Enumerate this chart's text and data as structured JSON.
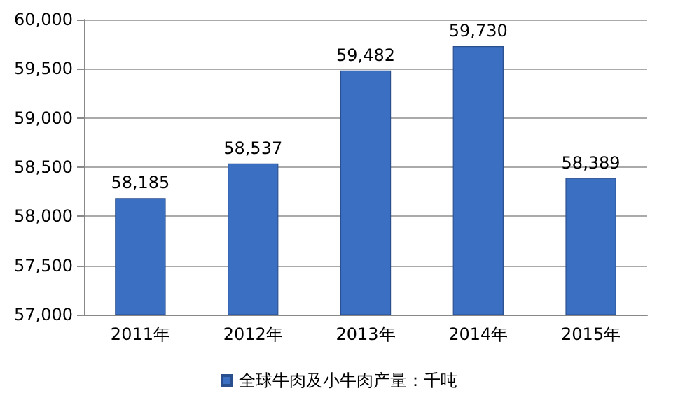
{
  "chart_data": {
    "type": "bar",
    "categories": [
      "2011年",
      "2012年",
      "2013年",
      "2014年",
      "2015年"
    ],
    "series": [
      {
        "name": "全球牛肉及小牛肉产量：千吨",
        "color": "#3b6fc2",
        "values": [
          58185,
          58537,
          59482,
          59730,
          58389
        ],
        "value_labels": [
          "58,185",
          "58,537",
          "59,482",
          "59,730",
          "58,389"
        ]
      }
    ],
    "ylim": [
      57000,
      60000
    ],
    "yticks": [
      {
        "value": 57000,
        "label": "57,000"
      },
      {
        "value": 57500,
        "label": "57,500"
      },
      {
        "value": 58000,
        "label": "58,000"
      },
      {
        "value": 58500,
        "label": "58,500"
      },
      {
        "value": 59000,
        "label": "59,000"
      },
      {
        "value": 59500,
        "label": "59,500"
      },
      {
        "value": 60000,
        "label": "60,000"
      }
    ],
    "grid": "y",
    "legend": "bottom"
  }
}
